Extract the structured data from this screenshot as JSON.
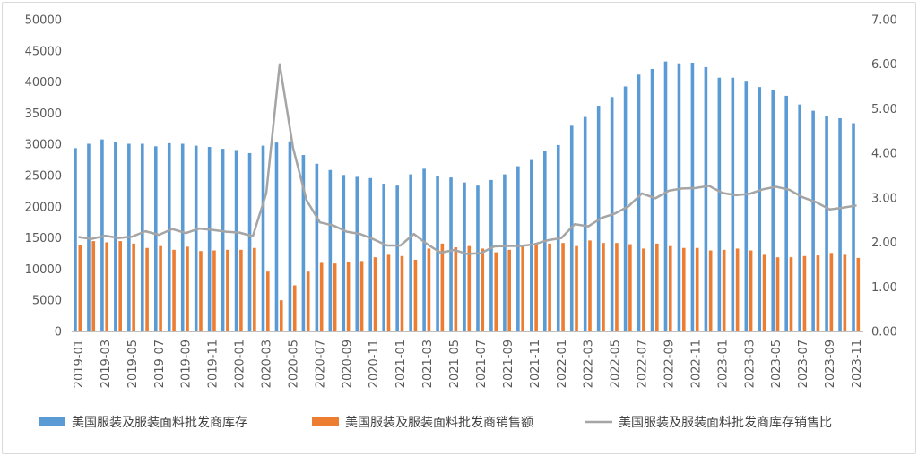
{
  "chart_data": {
    "type": "bar",
    "categories": [
      "2019-01",
      "2019-02",
      "2019-03",
      "2019-04",
      "2019-05",
      "2019-06",
      "2019-07",
      "2019-08",
      "2019-09",
      "2019-10",
      "2019-11",
      "2019-12",
      "2020-01",
      "2020-02",
      "2020-03",
      "2020-04",
      "2020-05",
      "2020-06",
      "2020-07",
      "2020-08",
      "2020-09",
      "2020-10",
      "2020-11",
      "2020-12",
      "2021-01",
      "2021-02",
      "2021-03",
      "2021-04",
      "2021-05",
      "2021-06",
      "2021-07",
      "2021-08",
      "2021-09",
      "2021-10",
      "2021-11",
      "2021-12",
      "2022-01",
      "2022-02",
      "2022-03",
      "2022-04",
      "2022-05",
      "2022-06",
      "2022-07",
      "2022-08",
      "2022-09",
      "2022-10",
      "2022-11",
      "2022-12",
      "2023-01",
      "2023-02",
      "2023-03",
      "2023-04",
      "2023-05",
      "2023-06",
      "2023-07",
      "2023-08",
      "2023-09",
      "2023-10",
      "2023-11"
    ],
    "x_tick_labels": [
      "2019-01",
      "2019-03",
      "2019-05",
      "2019-07",
      "2019-09",
      "2019-11",
      "2020-01",
      "2020-03",
      "2020-05",
      "2020-07",
      "2020-09",
      "2020-11",
      "2021-01",
      "2021-03",
      "2021-05",
      "2021-07",
      "2021-09",
      "2021-11",
      "2022-01",
      "2022-03",
      "2022-05",
      "2022-07",
      "2022-09",
      "2022-11",
      "2023-01",
      "2023-03",
      "2023-05",
      "2023-07",
      "2023-09",
      "2023-11"
    ],
    "series": [
      {
        "name": "美国服装及服装面料批发商库存",
        "kind": "bar",
        "axis": "left",
        "color": "#5b9bd5",
        "values": [
          29400,
          30100,
          30800,
          30400,
          30100,
          30100,
          29700,
          30200,
          30100,
          29800,
          29600,
          29300,
          29100,
          28600,
          29800,
          30300,
          30500,
          28300,
          26900,
          25900,
          25100,
          24800,
          24600,
          23700,
          23400,
          25200,
          26100,
          24900,
          24700,
          23900,
          23400,
          24300,
          25200,
          26500,
          27500,
          28900,
          29900,
          33000,
          34400,
          36200,
          37600,
          39300,
          41200,
          42100,
          43300,
          43000,
          43100,
          42400,
          40700,
          40700,
          40200,
          39200,
          38700,
          37800,
          36400,
          35400,
          34500,
          34200,
          33400
        ]
      },
      {
        "name": "美国服装及服装面料批发商销售额",
        "kind": "bar",
        "axis": "left",
        "color": "#ed7d31",
        "values": [
          13900,
          14500,
          14300,
          14500,
          14100,
          13400,
          13700,
          13100,
          13600,
          12900,
          13000,
          13100,
          13100,
          13400,
          9600,
          5000,
          7400,
          9600,
          11000,
          10900,
          11200,
          11300,
          11900,
          12300,
          12100,
          11500,
          13300,
          14100,
          13500,
          13700,
          13300,
          12700,
          13100,
          13800,
          14000,
          14100,
          14200,
          13700,
          14600,
          14200,
          14200,
          14000,
          13300,
          14100,
          13700,
          13400,
          13400,
          13000,
          13100,
          13300,
          13000,
          12300,
          11900,
          11900,
          12100,
          12200,
          12600,
          12300,
          11800
        ]
      },
      {
        "name": "美国服装及服装面料批发商库存销售比",
        "kind": "line",
        "axis": "right",
        "color": "#a5a5a5",
        "values": [
          2.12,
          2.08,
          2.15,
          2.1,
          2.13,
          2.25,
          2.17,
          2.3,
          2.21,
          2.31,
          2.28,
          2.24,
          2.22,
          2.14,
          3.1,
          6.0,
          4.12,
          2.95,
          2.45,
          2.38,
          2.24,
          2.19,
          2.07,
          1.93,
          1.93,
          2.19,
          1.96,
          1.77,
          1.83,
          1.74,
          1.76,
          1.91,
          1.92,
          1.92,
          1.96,
          2.05,
          2.1,
          2.41,
          2.36,
          2.55,
          2.65,
          2.81,
          3.1,
          2.99,
          3.16,
          3.21,
          3.22,
          3.27,
          3.11,
          3.06,
          3.09,
          3.19,
          3.25,
          3.18,
          3.01,
          2.9,
          2.74,
          2.78,
          2.83
        ]
      }
    ],
    "y_left": {
      "min": 0,
      "max": 50000,
      "step": 5000,
      "tick_labels": [
        "0",
        "5000",
        "10000",
        "15000",
        "20000",
        "25000",
        "30000",
        "35000",
        "40000",
        "45000",
        "50000"
      ]
    },
    "y_right": {
      "min": 0,
      "max": 7,
      "step": 1,
      "tick_labels": [
        "0.00",
        "1.00",
        "2.00",
        "3.00",
        "4.00",
        "5.00",
        "6.00",
        "7.00"
      ]
    },
    "title": "",
    "xlabel": "",
    "ylabel": "",
    "grid": false,
    "legend_position": "bottom",
    "colors": {
      "axis": "#bfbfbf",
      "tick_text": "#595959",
      "legend_text": "#404040"
    }
  }
}
